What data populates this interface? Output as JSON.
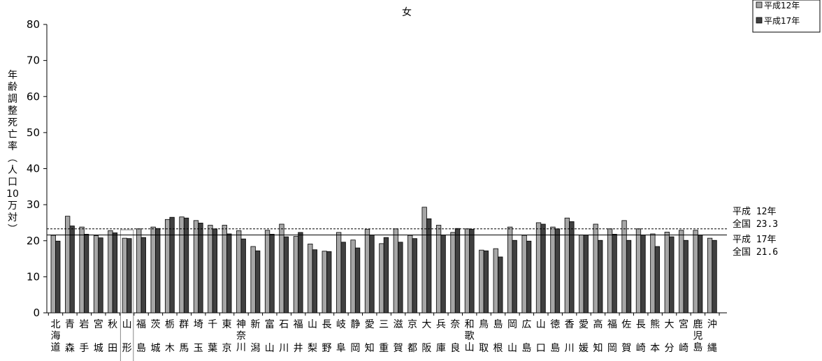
{
  "chart_data": {
    "type": "bar",
    "title": "女",
    "ylabel": "年齢調整死亡率（人口10万対）",
    "ylim": [
      0,
      80
    ],
    "yticks": [
      0,
      10,
      20,
      30,
      40,
      50,
      60,
      70,
      80
    ],
    "highlighted_category": "山形",
    "categories": [
      "北海道",
      "青森",
      "岩手",
      "宮城",
      "秋田",
      "山形",
      "福島",
      "茨城",
      "栃木",
      "群馬",
      "埼玉",
      "千葉",
      "東京",
      "神奈川",
      "新潟",
      "富山",
      "石川",
      "福井",
      "山梨",
      "長野",
      "岐阜",
      "静岡",
      "愛知",
      "三重",
      "滋賀",
      "京都",
      "大阪",
      "兵庫",
      "奈良",
      "和歌山",
      "鳥取",
      "島根",
      "岡山",
      "広島",
      "山口",
      "徳島",
      "香川",
      "愛媛",
      "高知",
      "福岡",
      "佐賀",
      "長崎",
      "熊本",
      "大分",
      "宮崎",
      "鹿児島",
      "沖縄"
    ],
    "series": [
      {
        "name": "平成12年",
        "color": "#a6a6a6",
        "values": [
          21.5,
          26.8,
          23.8,
          21.4,
          22.8,
          20.7,
          23.3,
          23.8,
          25.9,
          26.6,
          25.6,
          24.3,
          24.3,
          22.8,
          18.4,
          22.9,
          24.6,
          21.2,
          19.1,
          17.1,
          22.3,
          20.2,
          23.2,
          19.2,
          23.3,
          21.5,
          29.3,
          24.3,
          22.3,
          23.3,
          17.4,
          17.8,
          23.8,
          21.5,
          25.0,
          23.8,
          26.3,
          21.6,
          24.6,
          23.3,
          25.6,
          23.3,
          21.9,
          22.4,
          22.9,
          22.9,
          20.7
        ]
      },
      {
        "name": "平成17年",
        "color": "#404040",
        "values": [
          19.9,
          24.1,
          21.8,
          20.8,
          22.2,
          20.6,
          20.9,
          23.4,
          26.5,
          26.3,
          24.9,
          23.3,
          21.9,
          20.5,
          17.2,
          21.8,
          21.1,
          22.3,
          17.5,
          17.0,
          19.6,
          18.0,
          21.6,
          20.9,
          19.6,
          20.6,
          26.1,
          21.6,
          23.4,
          23.2,
          17.2,
          15.5,
          20.1,
          19.9,
          24.6,
          23.3,
          25.3,
          21.6,
          20.1,
          21.8,
          20.1,
          21.6,
          18.4,
          21.1,
          20.1,
          21.6,
          20.1
        ]
      }
    ],
    "reference_lines": [
      {
        "value": 23.3,
        "style": "dashed",
        "label_line1": "平成 12年",
        "label_line2": "全国 23.3"
      },
      {
        "value": 21.6,
        "style": "solid",
        "label_line1": "平成 17年",
        "label_line2": "全国 21.6"
      }
    ],
    "legend": {
      "placement": "top-right",
      "items": [
        "平成12年",
        "平成17年"
      ]
    },
    "grid": false
  }
}
